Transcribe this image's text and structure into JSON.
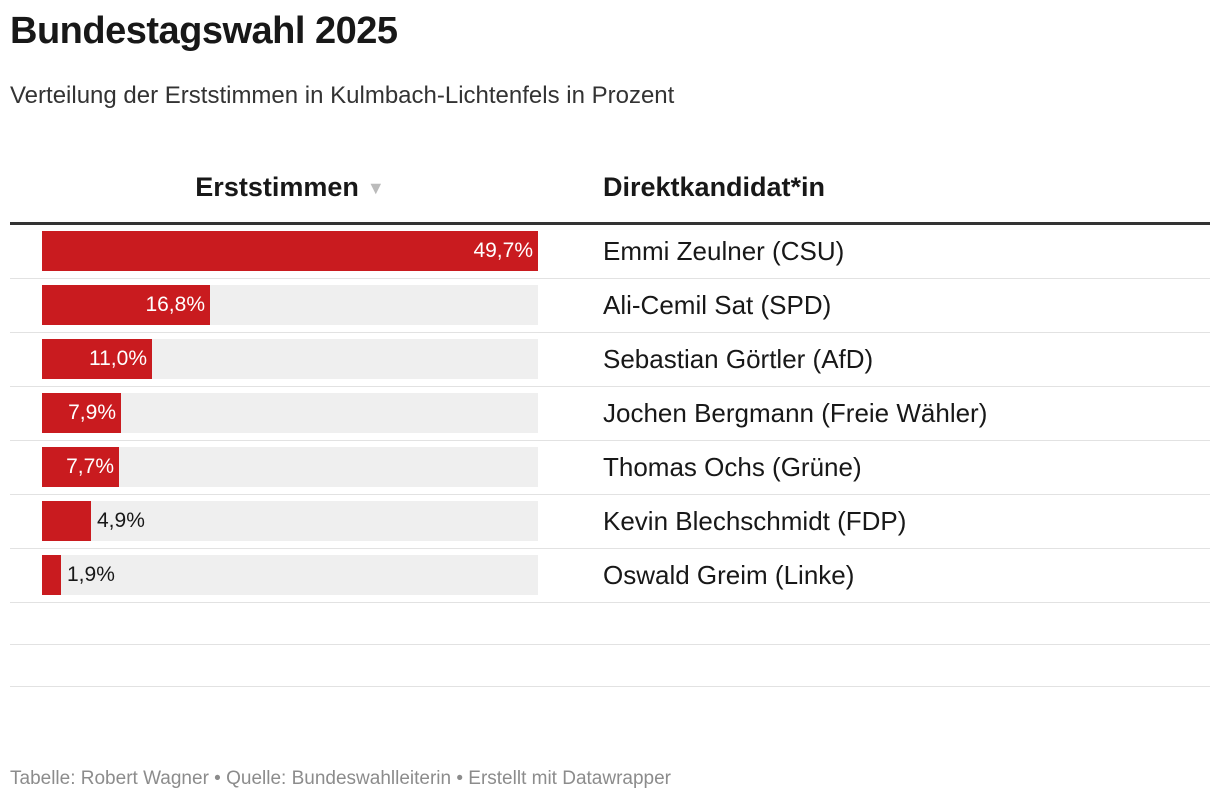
{
  "header": {
    "title": "Bundestagswahl 2025",
    "subtitle": "Verteilung der Erststimmen in Kulmbach-Lichtenfels in Prozent"
  },
  "columns": {
    "erststimmen": "Erststimmen",
    "kandidat": "Direktkandidat*in",
    "sort_icon": "sort-descending-icon"
  },
  "colors": {
    "bar": "#c91b1f",
    "bar_bg": "#efefef"
  },
  "chart_data": {
    "type": "table",
    "title": "Bundestagswahl 2025",
    "subtitle": "Verteilung der Erststimmen in Kulmbach-Lichtenfels in Prozent",
    "value_max": 49.7,
    "rows": [
      {
        "label": "49,7%",
        "value": 49.7,
        "name": "Emmi Zeulner (CSU)"
      },
      {
        "label": "16,8%",
        "value": 16.8,
        "name": "Ali-Cemil Sat (SPD)"
      },
      {
        "label": "11,0%",
        "value": 11.0,
        "name": "Sebastian Görtler (AfD)"
      },
      {
        "label": "7,9%",
        "value": 7.9,
        "name": "Jochen Bergmann (Freie Wähler)"
      },
      {
        "label": "7,7%",
        "value": 7.7,
        "name": "Thomas Ochs (Grüne)"
      },
      {
        "label": "4,9%",
        "value": 4.9,
        "name": "Kevin Blechschmidt (FDP)"
      },
      {
        "label": "1,9%",
        "value": 1.9,
        "name": "Oswald Greim (Linke)"
      }
    ]
  },
  "footer": {
    "text": "Tabelle: Robert Wagner • Quelle: Bundeswahlleiterin • Erstellt mit Datawrapper"
  }
}
